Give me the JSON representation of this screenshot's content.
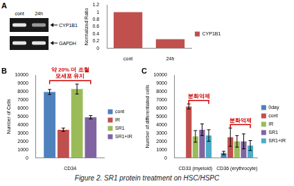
{
  "caption": "Figure 2. SR1 protein treatment on HSC/HSPC",
  "gel": {
    "panel_label": "A",
    "lanes": [
      "cont",
      "24h"
    ],
    "bands": [
      "CYP1B1",
      "GAPDH"
    ]
  },
  "chart_data": [
    {
      "panel_label": "",
      "type": "bar",
      "categories": [
        "cont",
        "24h"
      ],
      "series": [
        {
          "name": "CYP1B1",
          "color": "#c0504d",
          "values": [
            1,
            0.25
          ]
        }
      ],
      "ylabel": "Normalized Ratio",
      "ylim": [
        0,
        1.2
      ],
      "yticks": [
        0,
        0.2,
        0.4,
        0.6,
        0.8,
        1,
        1.2
      ],
      "legend": "right",
      "grid": false
    },
    {
      "panel_label": "B",
      "type": "bar",
      "categories": [
        "CD34"
      ],
      "series": [
        {
          "name": "cont",
          "color": "#4f81bd",
          "values": [
            7950
          ],
          "errors": [
            300
          ]
        },
        {
          "name": "IR",
          "color": "#c0504d",
          "values": [
            3400
          ],
          "errors": [
            200
          ]
        },
        {
          "name": "SR1",
          "color": "#9bbb59",
          "values": [
            8300
          ],
          "errors": [
            600
          ]
        },
        {
          "name": "SR1+IR",
          "color": "#8064a2",
          "values": [
            4900
          ],
          "errors": [
            200
          ]
        }
      ],
      "ylabel": "Number of Cells",
      "ylim": [
        0,
        10000
      ],
      "yticks": [
        0,
        1000,
        2000,
        3000,
        4000,
        5000,
        6000,
        7000,
        8000,
        9000,
        10000
      ],
      "annotations": [
        {
          "text": [
            "약 20% 더 조혈",
            "모세포 유지"
          ],
          "category": "CD34"
        }
      ],
      "legend": "right",
      "grid": false
    },
    {
      "panel_label": "C",
      "type": "bar",
      "categories": [
        "CD33 (myeloid)",
        "CD36 (erythrocyte)"
      ],
      "series": [
        {
          "name": "0day",
          "color": "#4f81bd",
          "values": [
            0,
            600
          ],
          "errors": [
            0,
            200
          ]
        },
        {
          "name": "cont",
          "color": "#c0504d",
          "values": [
            6200,
            2500
          ],
          "errors": [
            300,
            1100
          ]
        },
        {
          "name": "IR",
          "color": "#9bbb59",
          "values": [
            2600,
            2000
          ],
          "errors": [
            700,
            700
          ]
        },
        {
          "name": "SR1",
          "color": "#8064a2",
          "values": [
            3400,
            2000
          ],
          "errors": [
            700,
            900
          ]
        },
        {
          "name": "SR1+IR",
          "color": "#4bacc6",
          "values": [
            2700,
            1500
          ],
          "errors": [
            700,
            600
          ]
        }
      ],
      "ylabel": "Number of differentiated cells",
      "ylim": [
        0,
        10000
      ],
      "yticks": [
        0,
        1000,
        2000,
        3000,
        4000,
        5000,
        6000,
        7000,
        8000,
        9000,
        10000
      ],
      "annotations": [
        {
          "text": "분화억제",
          "category": "CD33 (myeloid)"
        },
        {
          "text": "분화억제",
          "category": "CD36 (erythrocyte)"
        }
      ],
      "legend": "right",
      "grid": false
    }
  ]
}
